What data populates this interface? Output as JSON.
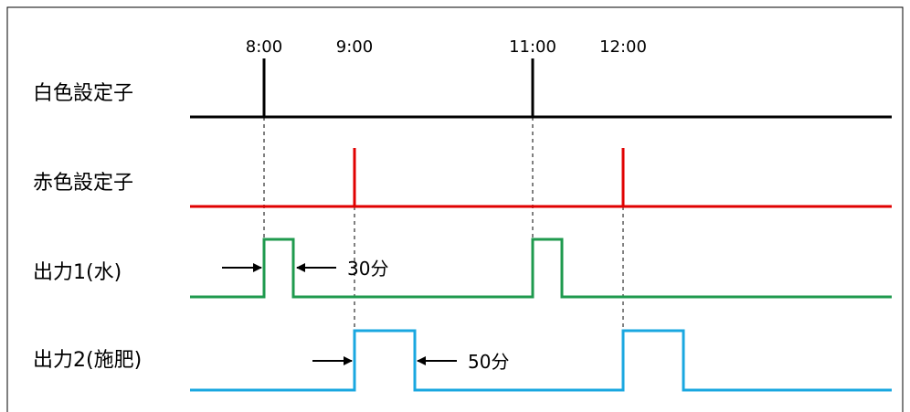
{
  "times": [
    "8:00",
    "9:00",
    "11:00",
    "12:00"
  ],
  "rows": [
    {
      "label": "白色設定子",
      "color": "#000000"
    },
    {
      "label": "赤色設定子",
      "color": "#e00000"
    },
    {
      "label": "出力1(水)",
      "color": "#1f9a4e"
    },
    {
      "label": "出力2(施肥)",
      "color": "#19a7e0"
    }
  ],
  "annotations": {
    "output1_duration": "30分",
    "output2_duration": "50分"
  }
}
